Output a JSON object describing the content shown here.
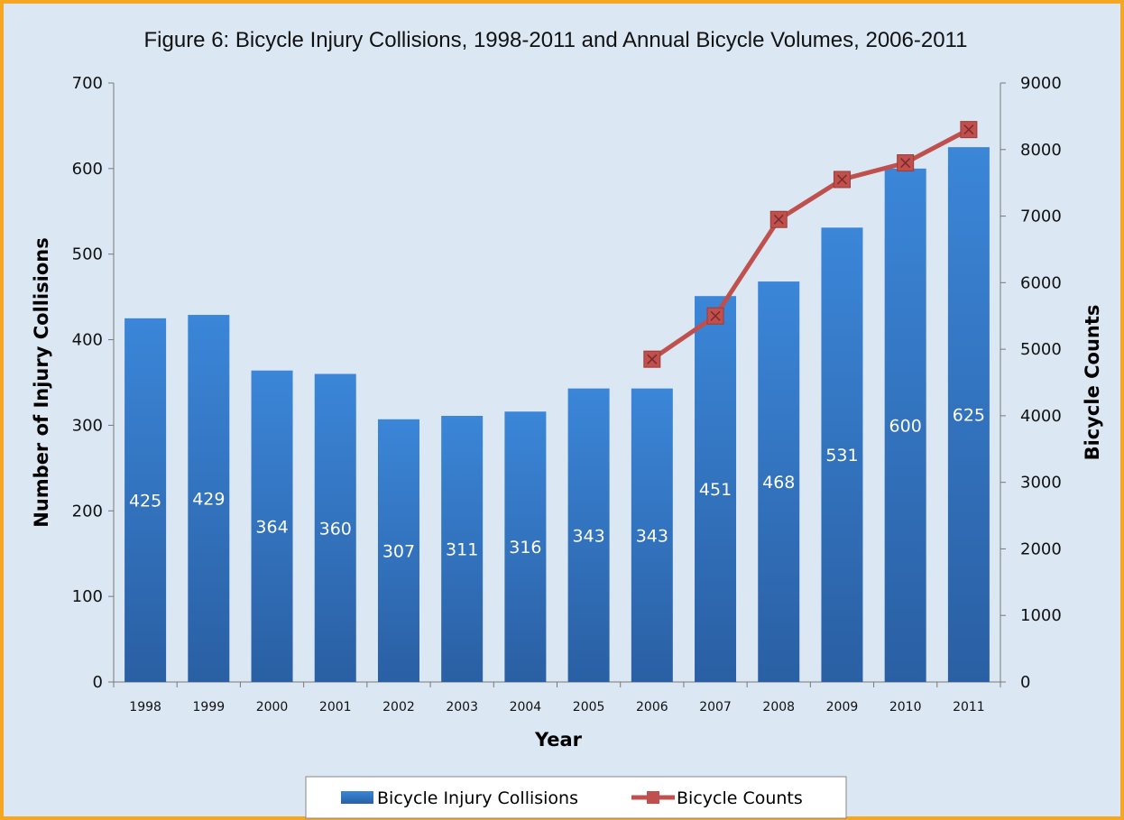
{
  "chart_data": {
    "type": "bar",
    "title": "Figure 6: Bicycle Injury Collisions, 1998-2011 and Annual Bicycle Volumes, 2006-2011",
    "xlabel": "Year",
    "ylabel": "Number of Injury Collisions",
    "y2label": "Bicycle Counts",
    "ylim": [
      0,
      700
    ],
    "y2lim": [
      0,
      9000
    ],
    "yticks": [
      "0",
      "100",
      "200",
      "300",
      "400",
      "500",
      "600",
      "700"
    ],
    "y2ticks": [
      "0",
      "1000",
      "2000",
      "3000",
      "4000",
      "5000",
      "6000",
      "7000",
      "8000",
      "9000"
    ],
    "categories": [
      "1998",
      "1999",
      "2000",
      "2001",
      "2002",
      "2003",
      "2004",
      "2005",
      "2006",
      "2007",
      "2008",
      "2009",
      "2010",
      "2011"
    ],
    "series": [
      {
        "name": "Bicycle Injury Collisions",
        "type": "bar",
        "axis": "left",
        "values": [
          425,
          429,
          364,
          360,
          307,
          311,
          316,
          343,
          343,
          451,
          468,
          531,
          600,
          625
        ],
        "color": "#2e6fc2"
      },
      {
        "name": "Bicycle Counts",
        "type": "line",
        "axis": "right",
        "x": [
          "2006",
          "2007",
          "2008",
          "2009",
          "2010",
          "2011"
        ],
        "values": [
          4850,
          5500,
          6950,
          7550,
          7800,
          8300
        ],
        "color": "#c0504d"
      }
    ],
    "legend": "bottom",
    "grid": false
  }
}
